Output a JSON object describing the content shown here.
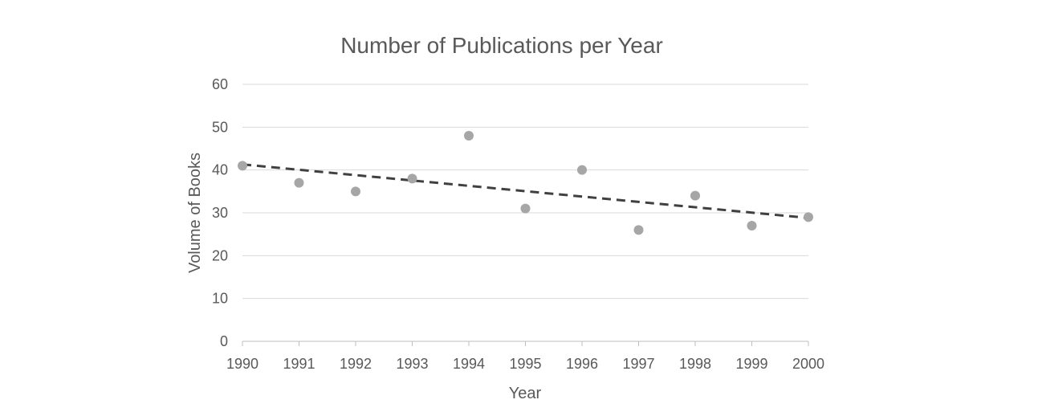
{
  "chart_data": {
    "type": "scatter",
    "title": "Number of Publications per Year",
    "xlabel": "Year",
    "ylabel": "Volume of Books",
    "xlim": [
      1990,
      2000
    ],
    "ylim": [
      0,
      60
    ],
    "x_ticks": [
      1990,
      1991,
      1992,
      1993,
      1994,
      1995,
      1996,
      1997,
      1998,
      1999,
      2000
    ],
    "y_ticks": [
      0,
      10,
      20,
      30,
      40,
      50,
      60
    ],
    "grid": true,
    "legend": "none",
    "series": [
      {
        "x": [
          1990,
          1991,
          1992,
          1993,
          1994,
          1995,
          1996,
          1997,
          1998,
          1999,
          2000
        ],
        "y": [
          41,
          37,
          35,
          38,
          48,
          31,
          40,
          26,
          34,
          27,
          29
        ],
        "color": "#a6a6a6"
      }
    ],
    "trendline": {
      "type": "linear",
      "style": "dashed",
      "color": "#404040",
      "y_start": 41.3,
      "y_end": 28.8
    }
  }
}
